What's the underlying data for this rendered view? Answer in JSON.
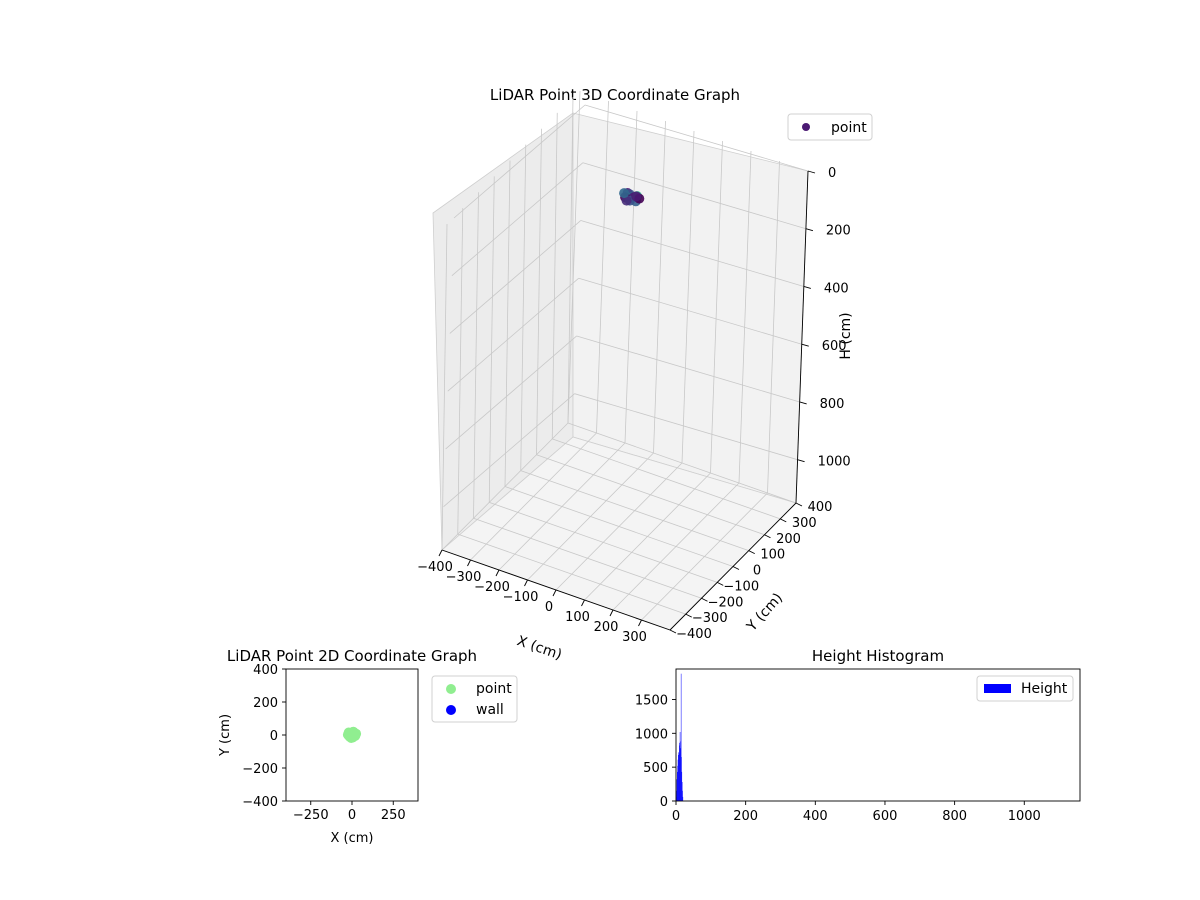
{
  "figure": {
    "background": "#ffffff"
  },
  "chart_data": [
    {
      "type": "scatter",
      "projection": "3d",
      "title": "LiDAR Point 3D Coordinate Graph",
      "xlabel": "X (cm)",
      "ylabel": "Y (cm)",
      "zlabel": "H (cm)",
      "xlim": [
        -400,
        400
      ],
      "ylim": [
        -400,
        400
      ],
      "zlim": [
        1150,
        0
      ],
      "z_inverted": true,
      "grid": true,
      "xticks": [
        "−400",
        "−300",
        "−200",
        "−100",
        "0",
        "100",
        "200",
        "300"
      ],
      "yticks": [
        "−400",
        "−300",
        "−200",
        "−100",
        "0",
        "100",
        "200",
        "300",
        "400"
      ],
      "zticks": [
        "0",
        "200",
        "400",
        "600",
        "800",
        "1000"
      ],
      "legend": {
        "position": "top-right",
        "entries": [
          {
            "label": "point",
            "color": "#4b1a73"
          }
        ]
      },
      "series": [
        {
          "name": "point",
          "color": "#4b1a73",
          "points": [
            {
              "x": -20,
              "y": 15,
              "h": 10,
              "color": "#4b1a73"
            },
            {
              "x": -10,
              "y": 10,
              "h": 8,
              "color": "#3b4f8a"
            },
            {
              "x": 0,
              "y": 5,
              "h": 12,
              "color": "#2a788e"
            },
            {
              "x": 10,
              "y": 0,
              "h": 6,
              "color": "#4b1a73"
            },
            {
              "x": 20,
              "y": -5,
              "h": 14,
              "color": "#35608d"
            },
            {
              "x": -15,
              "y": -10,
              "h": 9,
              "color": "#440154"
            },
            {
              "x": 5,
              "y": -15,
              "h": 11,
              "color": "#3a528b"
            },
            {
              "x": 15,
              "y": 12,
              "h": 7,
              "color": "#22a884"
            },
            {
              "x": -5,
              "y": -18,
              "h": 13,
              "color": "#472d7b"
            },
            {
              "x": 25,
              "y": 8,
              "h": 10,
              "color": "#440154"
            },
            {
              "x": -25,
              "y": 2,
              "h": 5,
              "color": "#31688e"
            },
            {
              "x": 8,
              "y": 20,
              "h": 15,
              "color": "#4b1a73"
            }
          ]
        }
      ]
    },
    {
      "type": "scatter",
      "title": "LiDAR Point 2D Coordinate Graph",
      "xlabel": "X (cm)",
      "ylabel": "Y (cm)",
      "xlim": [
        -400,
        400
      ],
      "ylim": [
        -400,
        400
      ],
      "xticks": [
        -250,
        0,
        250
      ],
      "yticks": [
        -400,
        -200,
        0,
        200,
        400
      ],
      "grid": false,
      "legend": {
        "position": "outside-right",
        "entries": [
          {
            "label": "point",
            "color": "#90ee90"
          },
          {
            "label": "wall",
            "color": "#0000ff"
          }
        ]
      },
      "series": [
        {
          "name": "point",
          "color": "#90ee90",
          "points": [
            {
              "x": -20,
              "y": 15
            },
            {
              "x": -10,
              "y": 10
            },
            {
              "x": 0,
              "y": 5
            },
            {
              "x": 10,
              "y": 0
            },
            {
              "x": 20,
              "y": -5
            },
            {
              "x": -15,
              "y": -10
            },
            {
              "x": 5,
              "y": -15
            },
            {
              "x": 15,
              "y": 12
            },
            {
              "x": -5,
              "y": -18
            },
            {
              "x": 25,
              "y": 8
            },
            {
              "x": -25,
              "y": 2
            },
            {
              "x": 8,
              "y": 20
            }
          ]
        },
        {
          "name": "wall",
          "color": "#0000ff",
          "points": []
        }
      ]
    },
    {
      "type": "bar",
      "subtype": "histogram",
      "title": "Height Histogram",
      "xlabel": "",
      "ylabel": "",
      "xlim": [
        0,
        1160
      ],
      "ylim": [
        0,
        1950
      ],
      "xticks": [
        0,
        200,
        400,
        600,
        800,
        1000
      ],
      "yticks": [
        0,
        500,
        1000,
        1500
      ],
      "grid": false,
      "legend": {
        "position": "top-right",
        "entries": [
          {
            "label": "Height",
            "color": "#0000ff"
          }
        ]
      },
      "series": [
        {
          "name": "Height",
          "color": "#0000ff",
          "bins": [
            {
              "x0": 0,
              "x1": 1,
              "count": 60
            },
            {
              "x0": 1,
              "x1": 2,
              "count": 150
            },
            {
              "x0": 2,
              "x1": 3,
              "count": 320
            },
            {
              "x0": 3,
              "x1": 4,
              "count": 430
            },
            {
              "x0": 4,
              "x1": 5,
              "count": 520
            },
            {
              "x0": 5,
              "x1": 6,
              "count": 610
            },
            {
              "x0": 6,
              "x1": 7,
              "count": 680
            },
            {
              "x0": 7,
              "x1": 8,
              "count": 720
            },
            {
              "x0": 8,
              "x1": 9,
              "count": 700
            },
            {
              "x0": 9,
              "x1": 10,
              "count": 860
            },
            {
              "x0": 10,
              "x1": 11,
              "count": 820
            },
            {
              "x0": 11,
              "x1": 12,
              "count": 1020
            },
            {
              "x0": 12,
              "x1": 13,
              "count": 880
            },
            {
              "x0": 13,
              "x1": 14,
              "count": 780
            },
            {
              "x0": 14,
              "x1": 15,
              "count": 1880
            },
            {
              "x0": 15,
              "x1": 16,
              "count": 650
            },
            {
              "x0": 16,
              "x1": 17,
              "count": 430
            },
            {
              "x0": 17,
              "x1": 18,
              "count": 280
            },
            {
              "x0": 18,
              "x1": 19,
              "count": 150
            },
            {
              "x0": 19,
              "x1": 20,
              "count": 60
            }
          ]
        }
      ]
    }
  ]
}
